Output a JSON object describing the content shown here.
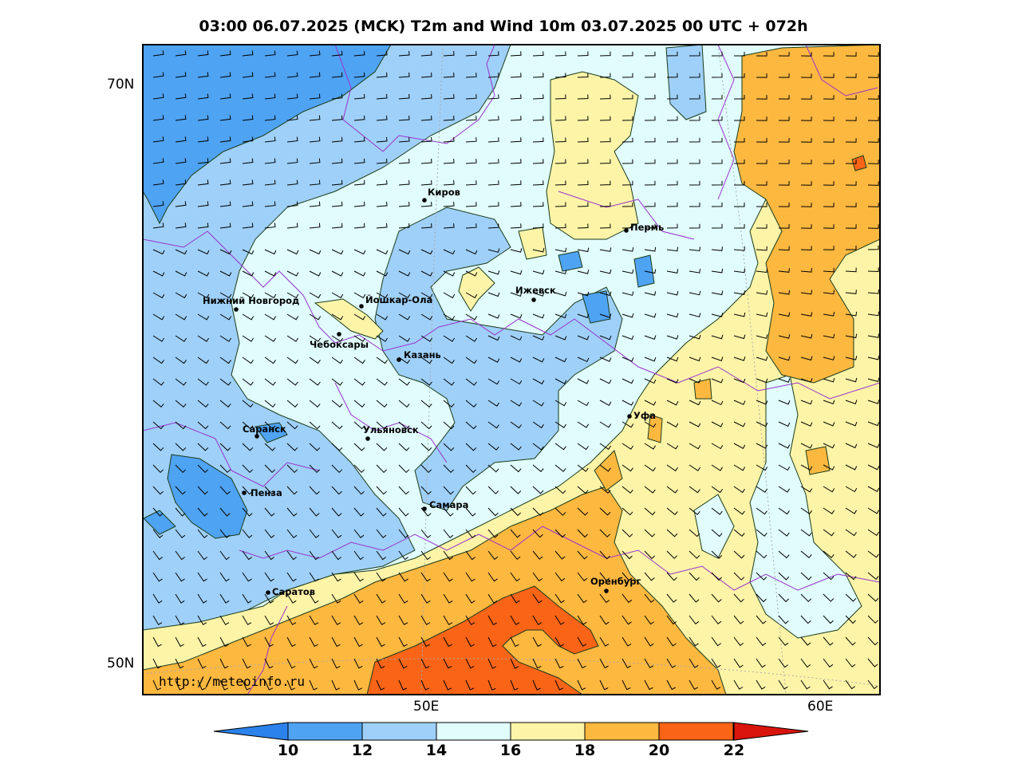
{
  "title": "03:00 06.07.2025 (MCK) T2m and Wind 10m 03.07.2025 00 UTC + 072h",
  "lat_labels": [
    "70N",
    "50N"
  ],
  "lon_labels": [
    "50E",
    "60E"
  ],
  "source": "http://meteoinfo.ru",
  "colorbar": {
    "ticks": [
      "10",
      "12",
      "14",
      "16",
      "18",
      "20",
      "22"
    ],
    "colors": [
      "#2b82ea",
      "#4fa3f3",
      "#9fd0f9",
      "#e0fcfc",
      "#fef4a8",
      "#fdb840",
      "#fa6416",
      "#d9140c"
    ]
  },
  "cities": [
    {
      "name": "Киров"
    },
    {
      "name": "Пермь"
    },
    {
      "name": "Йошкар-Ола"
    },
    {
      "name": "Нижний Новгород"
    },
    {
      "name": "Ижевск"
    },
    {
      "name": "Чебоксары"
    },
    {
      "name": "Казань"
    },
    {
      "name": "Уфа"
    },
    {
      "name": "Саранск"
    },
    {
      "name": "Ульяновск"
    },
    {
      "name": "Пенза"
    },
    {
      "name": "Самара"
    },
    {
      "name": "Оренбург"
    },
    {
      "name": "Саратов"
    }
  ]
}
